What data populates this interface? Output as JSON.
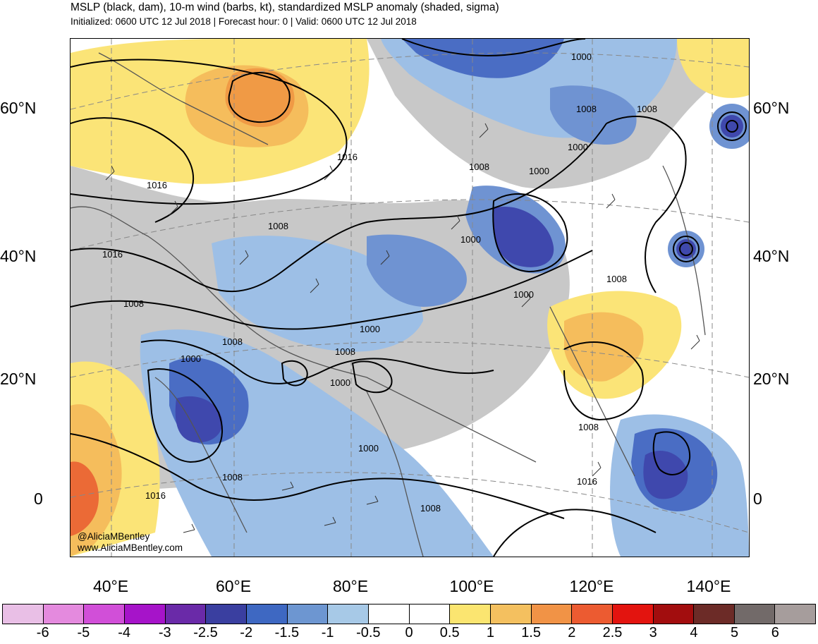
{
  "header": {
    "title": "MSLP (black, dam), 10-m wind (barbs, kt), standardized MSLP anomaly (shaded, sigma)",
    "subtitle": "Initialized: 0600 UTC 12 Jul 2018 | Forecast hour: 0 | Valid: 0600 UTC 12 Jul 2018"
  },
  "map": {
    "lat_labels": [
      "60°N",
      "40°N",
      "20°N",
      "0"
    ],
    "lon_labels": [
      "40°E",
      "60°E",
      "80°E",
      "100°E",
      "120°E",
      "140°E"
    ],
    "contour_labels": [
      "1016",
      "1016",
      "1016",
      "1008",
      "1008",
      "1000",
      "1008",
      "1016",
      "1008",
      "1000",
      "1008",
      "1000",
      "1000",
      "1000",
      "1008",
      "1008",
      "1000",
      "1000",
      "1008",
      "1000",
      "1008",
      "1008",
      "1008",
      "1016",
      "1000"
    ],
    "credit_handle": "@AliciaMBentley",
    "credit_site": "www.AliciaMBentley.com",
    "colors": {
      "strong_neg": "#3f48ad",
      "neg_2": "#4a6dc4",
      "neg_15": "#6f93d2",
      "neg_1": "#9dbfe6",
      "land_gray": "#c8c8c8",
      "pos_05": "#fbe477",
      "pos_1": "#f5bd5c",
      "pos_15": "#f09a45",
      "pos_2": "#eb6a36"
    }
  },
  "colorbar": {
    "colors": [
      "#e9bfe6",
      "#e48ade",
      "#d14fd8",
      "#a614c9",
      "#6a2aa8",
      "#3a3fa0",
      "#3e68c2",
      "#6d96d1",
      "#a7c9e7",
      "#ffffff",
      "#ffffff",
      "#fbe570",
      "#f4c05f",
      "#f19346",
      "#ec5b31",
      "#e3140f",
      "#a20d0e",
      "#6c2b27",
      "#726a69",
      "#a69d9c"
    ],
    "labels": [
      "-6",
      "-5",
      "-4",
      "-3",
      "-2.5",
      "-2",
      "-1.5",
      "-1",
      "-0.5",
      "0",
      "0.5",
      "1",
      "1.5",
      "2",
      "2.5",
      "3",
      "4",
      "5",
      "6"
    ]
  }
}
